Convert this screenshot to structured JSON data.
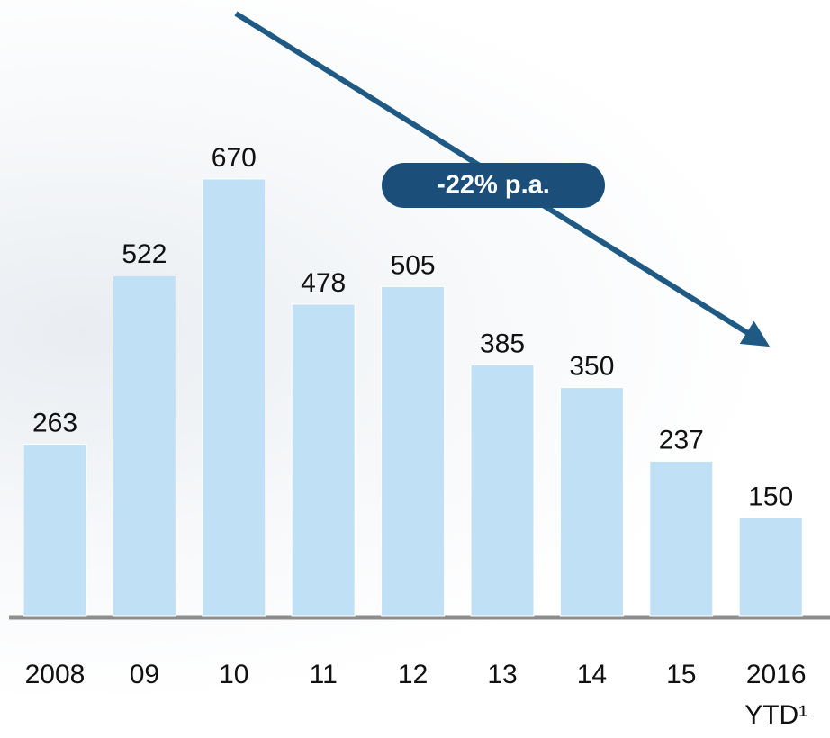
{
  "chart_data": {
    "type": "bar",
    "annotation": "-22% p.a.",
    "categories": [
      "2008",
      "09",
      "10",
      "11",
      "12",
      "13",
      "14",
      "15",
      "2016\nYTD¹"
    ],
    "values": [
      263,
      522,
      670,
      478,
      505,
      385,
      350,
      237,
      150
    ],
    "color": "#bfe0f5"
  }
}
